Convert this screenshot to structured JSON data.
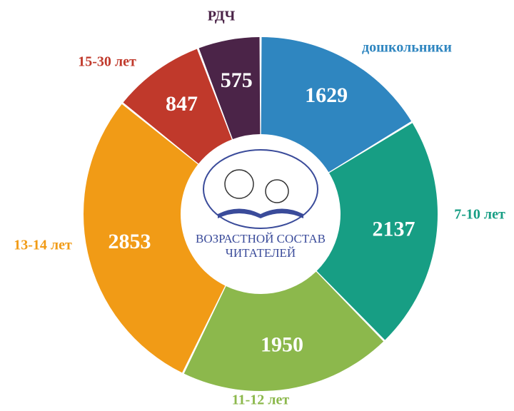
{
  "chart_data": {
    "type": "pie",
    "categories": [
      "дошкольники",
      "7-10 лет",
      "11-12 лет",
      "13-14 лет",
      "15-30 лет",
      "РДЧ"
    ],
    "values": [
      1629,
      2137,
      1950,
      2853,
      847,
      575
    ],
    "colors": [
      "#2f86c0",
      "#179e84",
      "#8cb84c",
      "#f19b16",
      "#c0392b",
      "#4b2448"
    ],
    "center_text": [
      "ВОЗРАСТНОЙ СОСТАВ",
      "ЧИТАТЕЛЕЙ"
    ]
  }
}
